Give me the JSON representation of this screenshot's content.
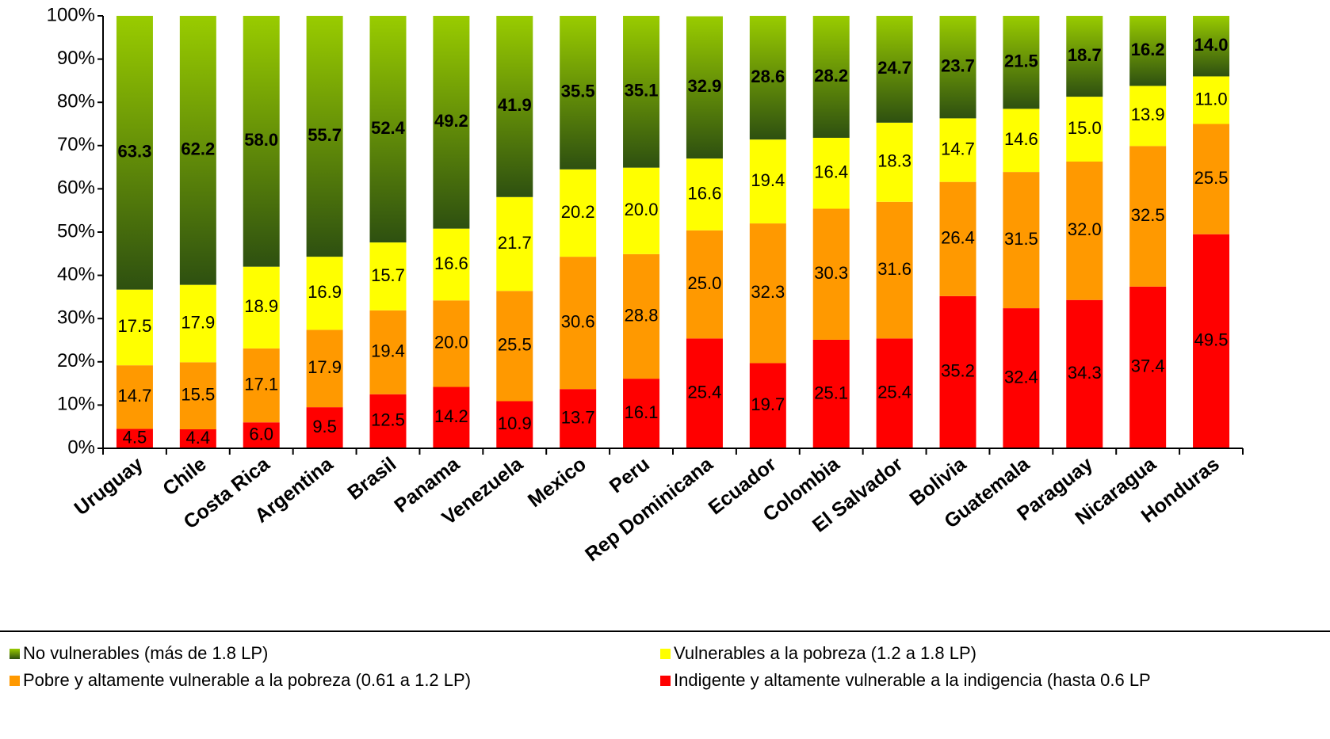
{
  "chart_data": {
    "type": "stacked_bar",
    "categories": [
      "Uruguay",
      "Chile",
      "Costa Rica",
      "Argentina",
      "Brasil",
      "Panama",
      "Venezuela",
      "Mexico",
      "Peru",
      "Rep Dominicana",
      "Ecuador",
      "Colombia",
      "El Salvador",
      "Bolivia",
      "Guatemala",
      "Paraguay",
      "Nicaragua",
      "Honduras"
    ],
    "series": [
      {
        "name": "Indigente y altamente vulnerable a la indigencia (hasta 0.6 LP",
        "color": "#ff0000",
        "values": [
          4.5,
          4.4,
          6.0,
          9.5,
          12.5,
          14.2,
          10.9,
          13.7,
          16.1,
          25.4,
          19.7,
          25.1,
          25.4,
          35.2,
          32.4,
          34.3,
          37.4,
          49.5
        ],
        "value_labels": [
          "4.5",
          "4.4",
          "6.0",
          "9.5",
          "12.5",
          "14.2",
          "10.9",
          "13.7",
          "16.1",
          "25.4",
          "19.7",
          "25.1",
          "25.4",
          "35.2",
          "32.4",
          "34.3",
          "37.4",
          "49.5"
        ]
      },
      {
        "name": "Pobre y altamente vulnerable a la pobreza (0.61 a 1.2 LP)",
        "color": "#ff9900",
        "values": [
          14.7,
          15.5,
          17.1,
          17.9,
          19.4,
          20.0,
          25.5,
          30.6,
          28.8,
          25.0,
          32.3,
          30.3,
          31.6,
          26.4,
          31.5,
          32.0,
          32.5,
          25.5
        ],
        "value_labels": [
          "14.7",
          "15.5",
          "17.1",
          "17.9",
          "19.4",
          "20.0",
          "25.5",
          "30.6",
          "28.8",
          "25.0",
          "32.3",
          "30.3",
          "31.6",
          "26.4",
          "31.5",
          "32.0",
          "32.5",
          "25.5"
        ]
      },
      {
        "name": "Vulnerables a la pobreza  (1.2 a 1.8 LP)",
        "color": "#ffff00",
        "values": [
          17.5,
          17.9,
          18.9,
          16.9,
          15.7,
          16.6,
          21.7,
          20.2,
          20.0,
          16.6,
          19.4,
          16.4,
          18.3,
          14.7,
          14.6,
          15.0,
          13.9,
          11.0
        ],
        "value_labels": [
          "17.5",
          "17.9",
          "18.9",
          "16.9",
          "15.7",
          "16.6",
          "21.7",
          "20.2",
          "20.0",
          "16.6",
          "19.4",
          "16.4",
          "18.3",
          "14.7",
          "14.6",
          "15.0",
          "13.9",
          "11.0"
        ]
      },
      {
        "name": "No vulnerables (más de 1.8 LP)",
        "color": "#99cc00",
        "values": [
          63.3,
          62.2,
          58.0,
          55.7,
          52.4,
          49.2,
          41.9,
          35.5,
          35.1,
          32.9,
          28.6,
          28.2,
          24.7,
          23.7,
          21.5,
          18.7,
          16.2,
          14.0
        ],
        "value_labels": [
          "63.3",
          "62.2",
          "58.0",
          "55.7",
          "52.4",
          "49.2",
          "41.9",
          "35.5",
          "35.1",
          "32.9",
          "28.6",
          "28.2",
          "24.7",
          "23.7",
          "21.5",
          "18.7",
          "16.2",
          "14.0"
        ]
      }
    ],
    "ylim": [
      0,
      100
    ],
    "yticks": [
      {
        "value": 0,
        "label": "0%"
      },
      {
        "value": 10,
        "label": "10%"
      },
      {
        "value": 20,
        "label": "20%"
      },
      {
        "value": 30,
        "label": "30%"
      },
      {
        "value": 40,
        "label": "40%"
      },
      {
        "value": 50,
        "label": "50%"
      },
      {
        "value": 60,
        "label": "60%"
      },
      {
        "value": 70,
        "label": "70%"
      },
      {
        "value": 80,
        "label": "80%"
      },
      {
        "value": 90,
        "label": "90%"
      },
      {
        "value": 100,
        "label": "100%"
      }
    ],
    "legend": "bottom"
  }
}
